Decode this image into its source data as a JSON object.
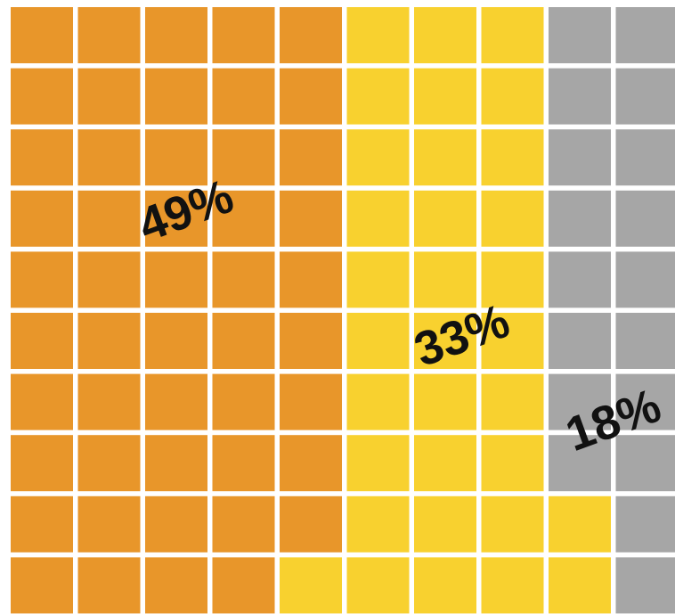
{
  "chart_data": {
    "type": "waffle",
    "values": [
      49,
      33,
      18
    ],
    "value_labels": [
      "49%",
      "33%",
      "18%"
    ],
    "colors": [
      "#e8962a",
      "#f8d12f",
      "#a6a6a6"
    ]
  }
}
